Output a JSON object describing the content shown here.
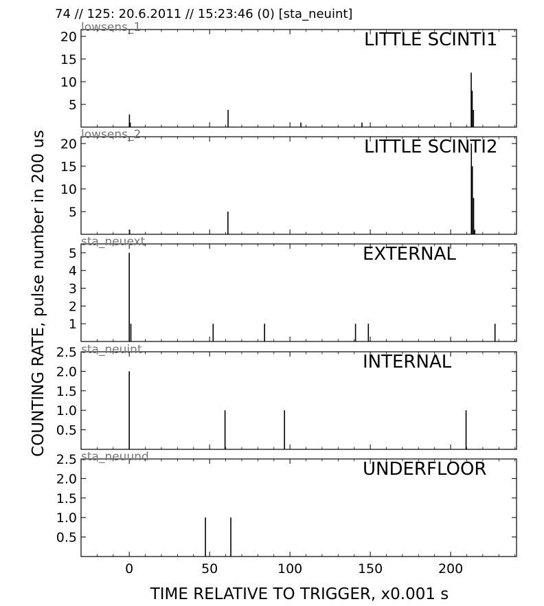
{
  "header_text": "74 // 125:   20.6.2011 // 15:23:46 (0)  [sta_neuint]",
  "ylabel": "COUNTING RATE,   pulse number in 200 us",
  "xlabel": "TIME RELATIVE TO TRIGGER,   x0.001 s",
  "chart_data": {
    "type": "bar",
    "shared_x": {
      "xlim": [
        -30,
        241
      ],
      "ticks": [
        0,
        50,
        100,
        150,
        200
      ],
      "tick_labels": [
        "0",
        "50",
        "100",
        "150",
        "200"
      ]
    },
    "panels": [
      {
        "id": "lowsens_1",
        "subtitle": "lowsens_1",
        "title": "LITTLE SCINTI1",
        "ylim": [
          0,
          21.5
        ],
        "yticks": [
          5,
          10,
          15,
          20
        ],
        "ytick_labels": [
          "5",
          "10",
          "15",
          "20"
        ],
        "spikes": [
          {
            "x": 0.1,
            "y": 2.8
          },
          {
            "x": 0.6,
            "y": 1
          },
          {
            "x": 61.5,
            "y": 3.8
          },
          {
            "x": 106.8,
            "y": 1
          },
          {
            "x": 144.8,
            "y": 1
          },
          {
            "x": 212.8,
            "y": 12
          },
          {
            "x": 213.4,
            "y": 8
          },
          {
            "x": 214.2,
            "y": 3.8
          }
        ]
      },
      {
        "id": "lowsens_2",
        "subtitle": "lowsens_2",
        "title": "LITTLE SCINTI2",
        "ylim": [
          0,
          21.5
        ],
        "yticks": [
          5,
          10,
          15,
          20
        ],
        "ytick_labels": [
          "5",
          "10",
          "15",
          "20"
        ],
        "spikes": [
          {
            "x": 0.2,
            "y": 1
          },
          {
            "x": 61.4,
            "y": 5
          },
          {
            "x": 212.9,
            "y": 20
          },
          {
            "x": 213.5,
            "y": 15
          },
          {
            "x": 214.3,
            "y": 8
          },
          {
            "x": 215,
            "y": 1
          }
        ]
      },
      {
        "id": "sta_neuext",
        "subtitle": "sta_neuext",
        "title": "EXTERNAL",
        "ylim": [
          0,
          5.5
        ],
        "yticks": [
          1,
          2,
          3,
          4,
          5
        ],
        "ytick_labels": [
          "1",
          "2",
          "3",
          "4",
          "5"
        ],
        "spikes": [
          {
            "x": 0,
            "y": 5
          },
          {
            "x": 1,
            "y": 1
          },
          {
            "x": 52.2,
            "y": 1
          },
          {
            "x": 84.2,
            "y": 1
          },
          {
            "x": 140.8,
            "y": 1
          },
          {
            "x": 148.8,
            "y": 1
          },
          {
            "x": 227.6,
            "y": 1
          }
        ]
      },
      {
        "id": "sta_neuint",
        "subtitle": "sta_neuint",
        "title": "INTERNAL",
        "ylim": [
          0,
          2.5
        ],
        "yticks": [
          0.5,
          1.0,
          1.5,
          2.0,
          2.5
        ],
        "ytick_labels": [
          "0.5",
          "1.0",
          "1.5",
          "2.0",
          "2.5"
        ],
        "spikes": [
          {
            "x": 0,
            "y": 2
          },
          {
            "x": 59.6,
            "y": 1
          },
          {
            "x": 96.6,
            "y": 1
          },
          {
            "x": 209.6,
            "y": 1
          }
        ]
      },
      {
        "id": "sta_neuund",
        "subtitle": "sta_neuund",
        "title": "UNDERFLOOR",
        "ylim": [
          0,
          2.5
        ],
        "yticks": [
          0.5,
          1.0,
          1.5,
          2.0,
          2.5
        ],
        "ytick_labels": [
          "0.5",
          "1.0",
          "1.5",
          "2.0",
          "2.5"
        ],
        "spikes": [
          {
            "x": 47.4,
            "y": 1
          },
          {
            "x": 63.2,
            "y": 1
          }
        ]
      }
    ]
  }
}
